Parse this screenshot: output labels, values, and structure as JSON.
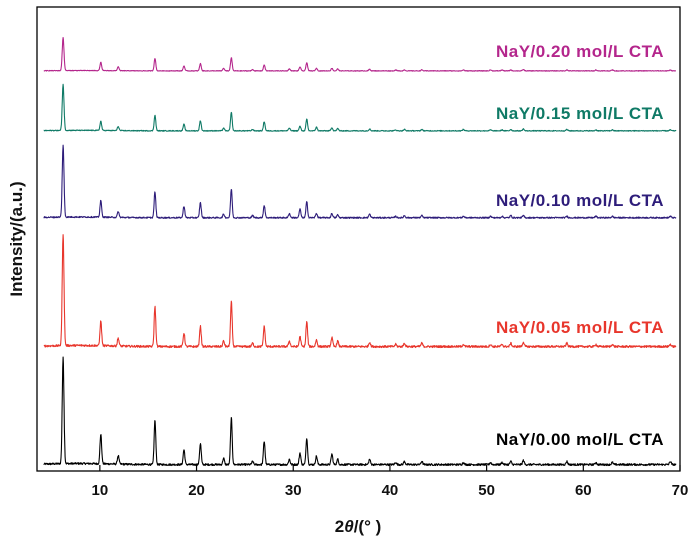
{
  "chart_data": {
    "type": "line",
    "xlabel_prefix": "2",
    "xlabel_theta": "θ",
    "xlabel_unit": "/(°  )",
    "ylabel": "Intensity/(a.u.)",
    "xlim": [
      3.5,
      70
    ],
    "xticks": [
      10,
      20,
      30,
      40,
      50,
      60,
      70
    ],
    "xtick_labels": [
      "10",
      "20",
      "30",
      "40",
      "50",
      "60",
      "70"
    ],
    "grid": false,
    "peaks_2theta": [
      6.2,
      10.1,
      11.9,
      15.7,
      18.7,
      20.4,
      22.8,
      23.6,
      25.8,
      27.0,
      29.6,
      30.7,
      31.4,
      32.4,
      34.0,
      34.6,
      37.9,
      40.6,
      41.5,
      43.3,
      47.6,
      50.4,
      51.6,
      52.5,
      53.8,
      58.3,
      61.3,
      63.0,
      69.0
    ],
    "series": [
      {
        "name": "NaY/0.00 mol/L CTA",
        "color": "#000000",
        "relative_intensities": [
          100,
          28,
          8,
          42,
          14,
          20,
          6,
          44,
          3,
          22,
          5,
          11,
          25,
          8,
          10,
          5,
          5,
          2,
          3,
          3,
          2,
          2,
          2,
          3,
          4,
          3,
          2,
          2,
          3
        ]
      },
      {
        "name": "NaY/0.05 mol/L CTA",
        "color": "#e8362c",
        "relative_intensities": [
          100,
          22,
          7,
          36,
          12,
          18,
          5,
          40,
          3,
          18,
          5,
          9,
          22,
          6,
          8,
          5,
          4,
          2,
          3,
          3,
          2,
          2,
          2,
          3,
          4,
          3,
          2,
          2,
          2
        ]
      },
      {
        "name": "NaY/0.10 mol/L CTA",
        "color": "#2e1d7a",
        "relative_intensities": [
          100,
          23,
          8,
          36,
          16,
          21,
          5,
          40,
          3,
          17,
          6,
          12,
          22,
          6,
          6,
          4,
          5,
          2,
          3,
          3,
          2,
          2,
          2,
          3,
          3,
          2,
          2,
          2,
          2
        ]
      },
      {
        "name": "NaY/0.15 mol/L CTA",
        "color": "#0f7a66",
        "relative_intensities": [
          100,
          20,
          9,
          34,
          14,
          22,
          6,
          40,
          3,
          20,
          6,
          10,
          25,
          8,
          7,
          5,
          4,
          2,
          3,
          3,
          3,
          2,
          2,
          3,
          4,
          3,
          2,
          2,
          2
        ]
      },
      {
        "name": "NaY/0.20 mol/L CTA",
        "color": "#b4268c",
        "relative_intensities": [
          100,
          25,
          12,
          38,
          15,
          22,
          8,
          40,
          4,
          18,
          6,
          12,
          25,
          8,
          8,
          6,
          5,
          3,
          3,
          3,
          3,
          3,
          3,
          3,
          4,
          3,
          3,
          3,
          3
        ]
      }
    ]
  }
}
